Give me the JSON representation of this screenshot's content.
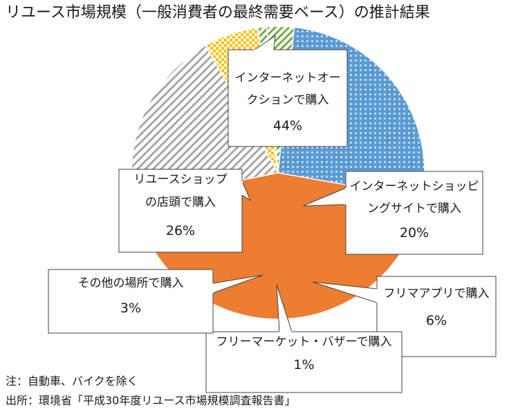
{
  "title": "リユース市場規模（一般消費者の最終需要ベース）の推計結果",
  "notes": {
    "note": "注：自動車、バイクを除く",
    "source": "出所：環境省「平成30年度リユース市場規模調査報告書」"
  },
  "colors": {
    "auction": "#ed7d31",
    "shopping": "#ffffff",
    "shopping_hatch": "#a6a6a6",
    "flea": "#ffc000",
    "flea_check": "#ffffff",
    "market": "#ffffff",
    "market_hatch": "#70ad47",
    "other": "#5b9bd5",
    "shop": "#5b9bd5",
    "shop_dots": "#ffffff",
    "outline": "#ffffff",
    "callout_border": "#404040"
  },
  "chart_data": {
    "type": "pie",
    "slices": [
      {
        "label_lines": [
          "インターネットオー",
          "クションで購入"
        ],
        "value": 44,
        "value_label": "44%",
        "pattern": "solid",
        "color_key": "auction"
      },
      {
        "label_lines": [
          "インターネットショッピ",
          "ングサイトで購入"
        ],
        "value": 20,
        "value_label": "20%",
        "pattern": "hatch",
        "color_key": "shopping"
      },
      {
        "label_lines": [
          "フリマアプリで購入"
        ],
        "value": 6,
        "value_label": "6%",
        "pattern": "check",
        "color_key": "flea"
      },
      {
        "label_lines": [
          "フリーマーケット・バザーで購入"
        ],
        "value": 1,
        "value_label": "1%",
        "pattern": "hatch-green",
        "color_key": "market"
      },
      {
        "label_lines": [
          "その他の場所で購入"
        ],
        "value": 3,
        "value_label": "3%",
        "pattern": "hatch-green",
        "color_key": "market"
      },
      {
        "label_lines": [
          "リユースショップ",
          "の店頭で購入"
        ],
        "value": 26,
        "value_label": "26%",
        "pattern": "dots",
        "color_key": "shop"
      }
    ]
  }
}
